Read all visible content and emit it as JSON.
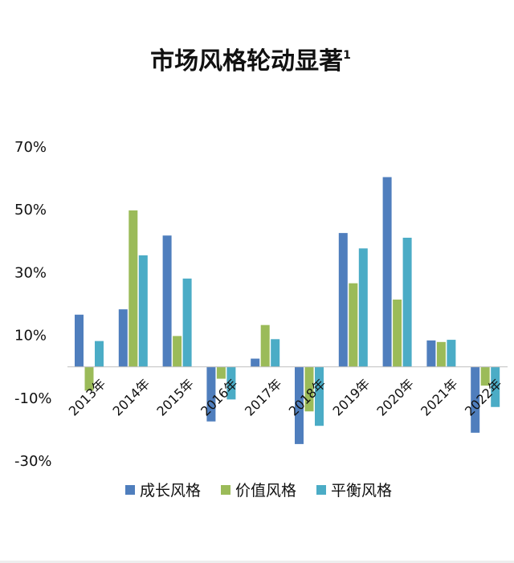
{
  "chart_data": {
    "type": "bar",
    "title": "市场风格轮动显著",
    "title_superscript": "1",
    "categories": [
      "2013年",
      "2014年",
      "2015年",
      "2016年",
      "2017年",
      "2018年",
      "2019年",
      "2020年",
      "2021年",
      "2022年"
    ],
    "series": [
      {
        "name": "成长风格",
        "color": "#4f7ebd",
        "values": [
          16.6,
          18.3,
          41.8,
          -17.4,
          2.6,
          -24.6,
          42.6,
          60.4,
          8.4,
          -21.0
        ]
      },
      {
        "name": "价值风格",
        "color": "#9bbb59",
        "values": [
          -7.6,
          49.8,
          9.8,
          -3.8,
          13.3,
          -14.2,
          26.6,
          21.4,
          7.9,
          -6.0
        ]
      },
      {
        "name": "平衡风格",
        "color": "#4bacc6",
        "values": [
          8.2,
          35.5,
          28.1,
          -10.4,
          8.8,
          -18.8,
          37.7,
          41.1,
          8.6,
          -12.8
        ]
      }
    ],
    "yticks": [
      "70%",
      "50%",
      "30%",
      "10%",
      "-10%",
      "-30%"
    ],
    "ylim": [
      -30,
      70
    ],
    "xlabel": "",
    "ylabel": "",
    "grid": false,
    "legend_position": "bottom"
  }
}
